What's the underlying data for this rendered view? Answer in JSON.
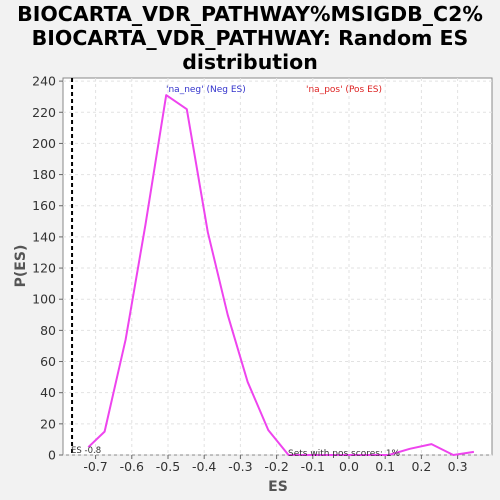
{
  "chart_data": {
    "type": "line",
    "title_lines": [
      "BIOCARTA_VDR_PATHWAY%MSIGDB_C2%",
      "BIOCARTA_VDR_PATHWAY: Random ES",
      "distribution"
    ],
    "xlabel": "ES",
    "ylabel": "P(ES)",
    "xlim": [
      -0.79,
      0.395
    ],
    "ylim": [
      0,
      242
    ],
    "x_ticks": [
      -0.7,
      -0.6,
      -0.5,
      -0.4,
      -0.3,
      -0.2,
      -0.1,
      0.0,
      0.1,
      0.2,
      0.3
    ],
    "x_tick_labels": [
      "-0.7",
      "-0.6",
      "-0.5",
      "-0.4",
      "-0.3",
      "-0.2",
      "-0.1",
      "0.0",
      "0.1",
      "0.2",
      "0.3"
    ],
    "y_ticks": [
      0,
      20,
      40,
      60,
      80,
      100,
      120,
      140,
      160,
      180,
      200,
      220,
      240
    ],
    "y_tick_labels": [
      "0",
      "20",
      "40",
      "60",
      "80",
      "100",
      "120",
      "140",
      "160",
      "180",
      "200",
      "220",
      "240"
    ],
    "grid": true,
    "series": [
      {
        "color": "#ee44ee",
        "x": [
          -0.72,
          -0.675,
          -0.617,
          -0.562,
          -0.505,
          -0.448,
          -0.39,
          -0.335,
          -0.28,
          -0.223,
          -0.167,
          -0.11,
          -0.053,
          0.0,
          0.055,
          0.11,
          0.168,
          0.228,
          0.288,
          0.345
        ],
        "y": [
          5,
          15,
          74,
          148,
          231,
          222,
          143,
          90,
          47,
          16,
          0,
          0,
          0,
          0,
          0,
          0,
          4,
          7,
          0,
          2
        ]
      }
    ],
    "es_marker": {
      "x": -0.765,
      "label": "ES -0.8",
      "color": "#000000"
    },
    "annotations": {
      "neg_label": "'na_neg' (Neg ES)",
      "neg_color": "#3333cc",
      "pos_label": "'na_pos' (Pos ES)",
      "pos_color": "#dd2222",
      "pos_scores_text": "Sets with pos scores: 1%"
    }
  }
}
